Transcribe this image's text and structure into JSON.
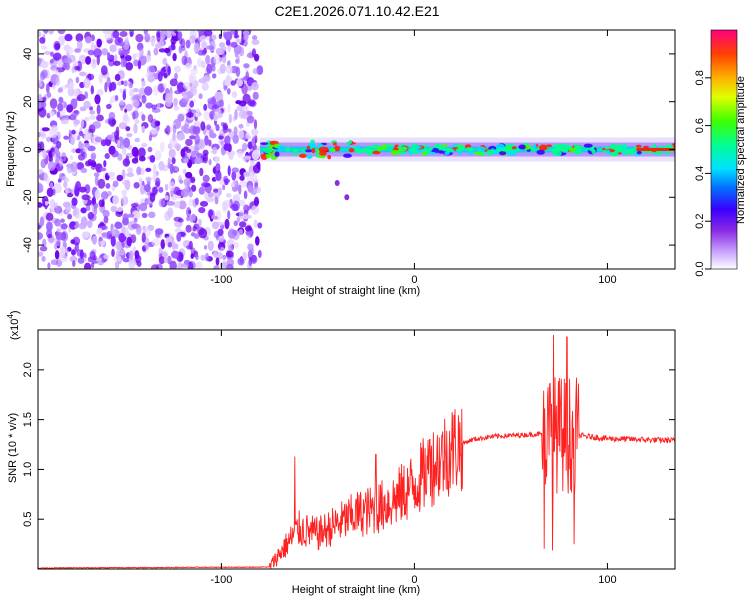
{
  "title": "C2E1.2026.071.10.42.E21",
  "colors": {
    "snr_line": "#ff2020",
    "noise_purple": "#7a1cff"
  },
  "chart_data": [
    {
      "type": "heatmap",
      "xlabel": "Height of straight line (km)",
      "ylabel": "Frequency (Hz)",
      "xlim": [
        -195,
        135
      ],
      "ylim": [
        -50,
        50
      ],
      "x_ticks": [
        -100,
        0,
        100
      ],
      "x_tick_labels": [
        "-100",
        "0",
        "100"
      ],
      "y_ticks": [
        -40,
        -20,
        0,
        20,
        40
      ],
      "y_tick_labels": [
        "-40",
        "-20",
        "0",
        "20",
        "40"
      ],
      "colorbar": {
        "label": "Normalized spectral amplitude",
        "range": [
          0.0,
          1.0
        ],
        "ticks": [
          0.0,
          0.2,
          0.4,
          0.6,
          0.8
        ],
        "tick_labels": [
          "0.0",
          "0.2",
          "0.4",
          "0.6",
          "0.8"
        ]
      },
      "regions": {
        "noise_x": [
          -195,
          -80
        ],
        "signal_band_x": [
          -80,
          135
        ],
        "signal_center_hz": 0
      }
    },
    {
      "type": "line",
      "xlabel": "Height of straight line (km)",
      "ylabel": "SNR (10 * v/v)",
      "scale_label": "(x10",
      "scale_exponent": "4",
      "scale_suffix": ")",
      "xlim": [
        -195,
        135
      ],
      "ylim": [
        0,
        2.4
      ],
      "x_ticks": [
        -100,
        0,
        100
      ],
      "x_tick_labels": [
        "-100",
        "0",
        "100"
      ],
      "y_ticks": [
        0.5,
        1.0,
        1.5,
        2.0
      ],
      "y_tick_labels": [
        "0.5",
        "1.0",
        "1.5",
        "2.0"
      ],
      "series": [
        {
          "name": "SNR",
          "envelope": [
            {
              "x": -195,
              "y": 0.01
            },
            {
              "x": -75,
              "y": 0.02
            },
            {
              "x": -70,
              "y": 0.15
            },
            {
              "x": -60,
              "y": 0.4
            },
            {
              "x": -50,
              "y": 0.35
            },
            {
              "x": -40,
              "y": 0.45
            },
            {
              "x": -30,
              "y": 0.55
            },
            {
              "x": -20,
              "y": 0.6
            },
            {
              "x": -10,
              "y": 0.7
            },
            {
              "x": 0,
              "y": 0.85
            },
            {
              "x": 10,
              "y": 1.05
            },
            {
              "x": 20,
              "y": 1.22
            },
            {
              "x": 30,
              "y": 1.3
            },
            {
              "x": 40,
              "y": 1.33
            },
            {
              "x": 60,
              "y": 1.35
            },
            {
              "x": 70,
              "y": 1.36
            },
            {
              "x": 80,
              "y": 1.35
            },
            {
              "x": 90,
              "y": 1.33
            },
            {
              "x": 100,
              "y": 1.31
            },
            {
              "x": 135,
              "y": 1.29
            }
          ],
          "peaks": [
            {
              "x": -62,
              "y": 1.13
            },
            {
              "x": -20,
              "y": 1.15
            },
            {
              "x": 8,
              "y": 1.3
            },
            {
              "x": 72,
              "y": 2.35
            },
            {
              "x": 79,
              "y": 2.33
            }
          ]
        }
      ]
    }
  ]
}
